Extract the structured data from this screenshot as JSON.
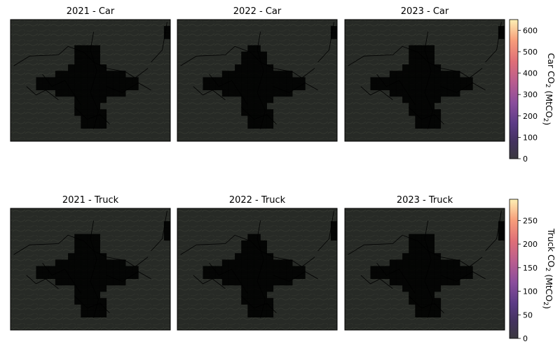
{
  "chart_data": {
    "type": "heatmap",
    "panels": [
      {
        "title": "2021 - Car",
        "variable": "car",
        "year": "2021"
      },
      {
        "title": "2022 - Car",
        "variable": "car",
        "year": "2022"
      },
      {
        "title": "2023 - Car",
        "variable": "car",
        "year": "2023"
      },
      {
        "title": "2021 - Truck",
        "variable": "truck",
        "year": "2021"
      },
      {
        "title": "2022 - Truck",
        "variable": "truck",
        "year": "2022"
      },
      {
        "title": "2023 - Truck",
        "variable": "truck",
        "year": "2023"
      }
    ],
    "colorbars": {
      "car": {
        "label_prefix": "Car CO",
        "label_sub": "2",
        "label_mid": " (MtCO",
        "label_sub2": "2",
        "label_suffix": ")",
        "range": [
          0,
          650
        ],
        "ticks": [
          0,
          100,
          200,
          300,
          400,
          500,
          600
        ]
      },
      "truck": {
        "label_prefix": "Truck CO",
        "label_sub": "2",
        "label_mid": " (MtCO",
        "label_sub2": "2",
        "label_suffix": ")",
        "range": [
          0,
          295
        ],
        "ticks": [
          0,
          50,
          100,
          150,
          200,
          250
        ]
      }
    },
    "colormap": "magma",
    "basemap": "dark terrain with administrative boundaries"
  }
}
